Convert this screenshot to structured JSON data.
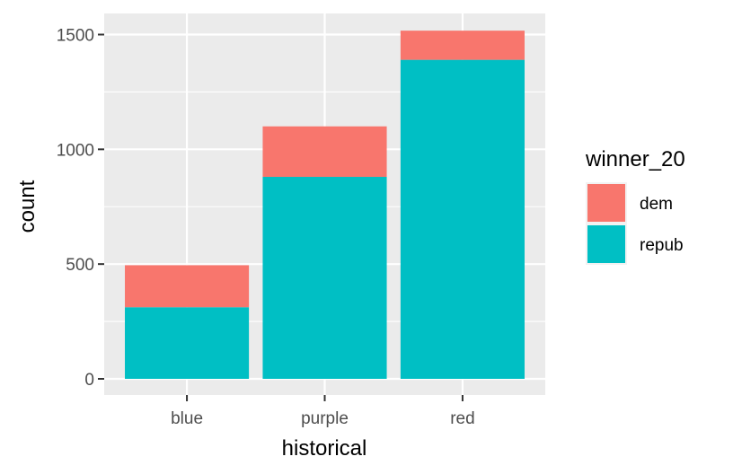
{
  "chart_data": {
    "type": "bar",
    "stacked": true,
    "categories": [
      "blue",
      "purple",
      "red"
    ],
    "series": [
      {
        "name": "repub",
        "values": [
          312,
          880,
          1390
        ],
        "color": "#00BFC4"
      },
      {
        "name": "dem",
        "values": [
          183,
          220,
          127
        ],
        "color": "#F8766D"
      }
    ],
    "xlabel": "historical",
    "ylabel": "count",
    "ylim": [
      0,
      1500
    ],
    "y_ticks": [
      0,
      500,
      1000,
      1500
    ],
    "y_tick_labels": [
      "0",
      "500",
      "1000",
      "1500"
    ],
    "grid": true,
    "panel_background": "#EBEBEB",
    "grid_color": "#FFFFFF",
    "legend": {
      "title": "winner_20",
      "position": "right",
      "entries": [
        {
          "label": "dem",
          "color": "#F8766D"
        },
        {
          "label": "repub",
          "color": "#00BFC4"
        }
      ]
    }
  }
}
